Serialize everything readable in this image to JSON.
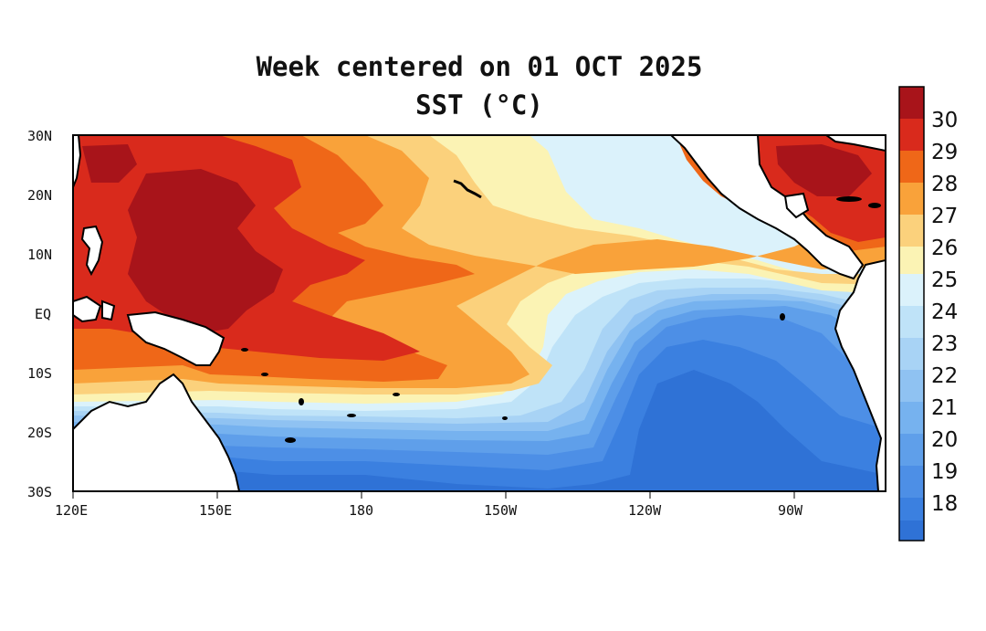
{
  "title": "Week centered on 01 OCT 2025",
  "subtitle": "SST (°C)",
  "colors": {
    "land": "#ffffff",
    "coast": "#000000",
    "c17": "#2f72d6",
    "c18": "#3b80e0",
    "c19": "#4d8fe6",
    "c20": "#5f9fea",
    "c21": "#76b2ef",
    "c22": "#8fc2f2",
    "c23": "#a8d3f5",
    "c24": "#bfe3f8",
    "c25": "#dbf2fb",
    "c26": "#fbf3b4",
    "c27": "#fbd17c",
    "c28": "#f9a23a",
    "c29": "#ef6718",
    "c30": "#d92a1c",
    "c31": "#a8141a"
  },
  "map": {
    "lon_labels": [
      "120E",
      "150E",
      "180",
      "150W",
      "120W",
      "90W"
    ],
    "lat_labels": [
      "30N",
      "20N",
      "10N",
      "EQ",
      "10S",
      "20S",
      "30S"
    ]
  },
  "colorbar": {
    "labels": [
      "30",
      "29",
      "28",
      "27",
      "26",
      "25",
      "24",
      "23",
      "22",
      "21",
      "20",
      "19",
      "18"
    ]
  }
}
